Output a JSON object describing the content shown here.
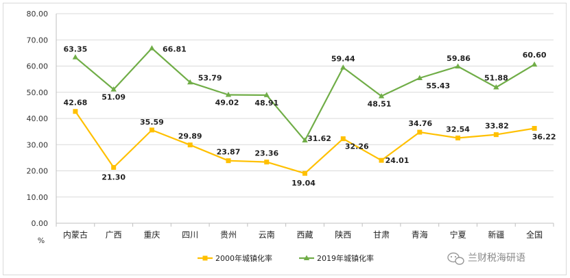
{
  "chart_data": {
    "type": "line",
    "categories": [
      "内蒙古",
      "广西",
      "重庆",
      "四川",
      "贵州",
      "云南",
      "西藏",
      "陕西",
      "甘肃",
      "青海",
      "宁夏",
      "新疆",
      "全国"
    ],
    "series": [
      {
        "name": "2000年城镇化率",
        "color": "#ffc000",
        "marker": "square",
        "values": [
          42.68,
          21.3,
          35.59,
          29.89,
          23.87,
          23.36,
          19.04,
          32.26,
          24.01,
          34.76,
          32.54,
          33.82,
          36.22
        ]
      },
      {
        "name": "2019年城镇化率",
        "color": "#70ad47",
        "marker": "triangle",
        "values": [
          63.35,
          51.09,
          66.81,
          53.79,
          49.02,
          48.91,
          31.62,
          59.44,
          48.51,
          55.43,
          59.86,
          51.88,
          60.6
        ]
      }
    ],
    "ylim": [
      0,
      80
    ],
    "yticks": [
      "0.00",
      "10.00",
      "20.00",
      "30.00",
      "40.00",
      "50.00",
      "60.00",
      "70.00",
      "80.00"
    ],
    "ylabel": "%",
    "grid": true,
    "legend_position": "bottom"
  },
  "watermark": {
    "text": "兰财税海研语",
    "icon": "wechat-icon"
  }
}
